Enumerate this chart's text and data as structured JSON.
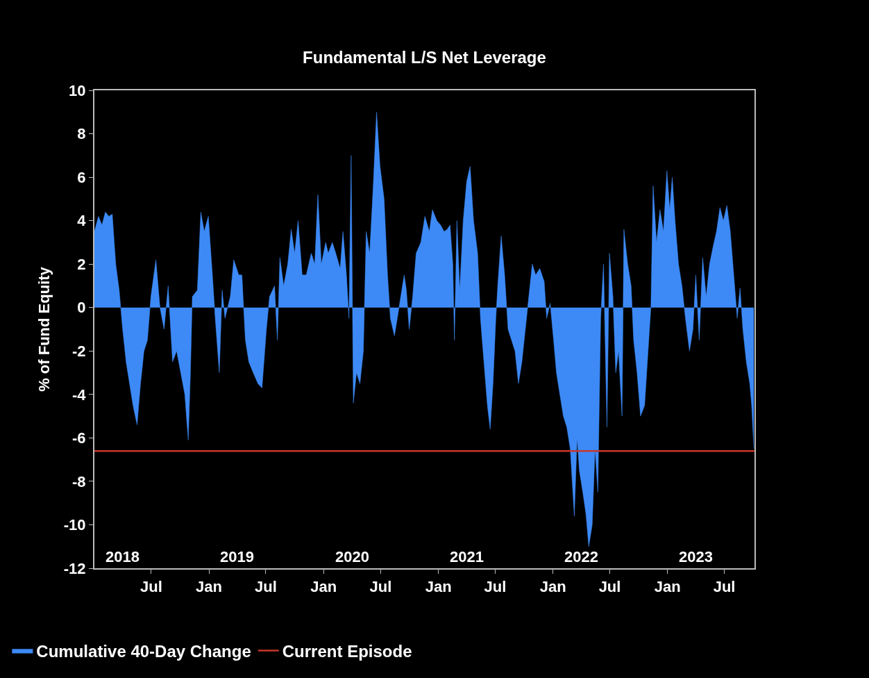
{
  "chart_data": {
    "type": "area",
    "title": "Fundamental L/S Net Leverage",
    "ylabel": "% of Fund Equity",
    "x": [
      "2018-01-01",
      "2018-01-14",
      "2018-01-25",
      "2018-02-05",
      "2018-02-16",
      "2018-02-27",
      "2018-03-10",
      "2018-03-21",
      "2018-04-01",
      "2018-04-12",
      "2018-04-23",
      "2018-05-04",
      "2018-05-17",
      "2018-05-28",
      "2018-06-08",
      "2018-06-19",
      "2018-06-30",
      "2018-07-16",
      "2018-07-29",
      "2018-08-11",
      "2018-08-24",
      "2018-09-07",
      "2018-09-20",
      "2018-10-03",
      "2018-10-16",
      "2018-10-27",
      "2018-11-03",
      "2018-11-09",
      "2018-11-25",
      "2018-12-06",
      "2018-12-17",
      "2018-12-30",
      "2019-01-12",
      "2019-01-21",
      "2019-02-03",
      "2019-02-12",
      "2019-02-21",
      "2019-03-10",
      "2019-03-21",
      "2019-04-06",
      "2019-04-16",
      "2019-04-27",
      "2019-05-08",
      "2019-05-22",
      "2019-06-06",
      "2019-06-19",
      "2019-07-03",
      "2019-07-13",
      "2019-07-29",
      "2019-08-07",
      "2019-08-15",
      "2019-08-27",
      "2019-09-09",
      "2019-09-20",
      "2019-10-01",
      "2019-10-12",
      "2019-10-25",
      "2019-11-07",
      "2019-11-23",
      "2019-12-04",
      "2019-12-14",
      "2019-12-25",
      "2020-01-08",
      "2020-01-16",
      "2020-01-29",
      "2020-02-09",
      "2020-02-23",
      "2020-03-03",
      "2020-03-14",
      "2020-03-22",
      "2020-03-29",
      "2020-04-05",
      "2020-04-15",
      "2020-04-26",
      "2020-05-07",
      "2020-05-16",
      "2020-05-27",
      "2020-06-07",
      "2020-06-18",
      "2020-06-29",
      "2020-07-12",
      "2020-07-23",
      "2020-08-01",
      "2020-08-14",
      "2020-08-23",
      "2020-09-03",
      "2020-09-14",
      "2020-09-21",
      "2020-09-30",
      "2020-10-11",
      "2020-10-22",
      "2020-11-06",
      "2020-11-19",
      "2020-12-03",
      "2020-12-13",
      "2020-12-27",
      "2021-01-08",
      "2021-01-19",
      "2021-01-29",
      "2021-02-07",
      "2021-02-16",
      "2021-02-21",
      "2021-03-01",
      "2021-03-10",
      "2021-03-21",
      "2021-04-01",
      "2021-04-12",
      "2021-04-23",
      "2021-05-06",
      "2021-05-15",
      "2021-05-26",
      "2021-06-06",
      "2021-06-15",
      "2021-06-24",
      "2021-07-03",
      "2021-07-09",
      "2021-07-20",
      "2021-07-31",
      "2021-08-11",
      "2021-08-22",
      "2021-09-02",
      "2021-09-13",
      "2021-09-24",
      "2021-10-05",
      "2021-10-16",
      "2021-10-27",
      "2021-11-07",
      "2021-11-20",
      "2021-12-04",
      "2021-12-12",
      "2021-12-23",
      "2022-01-03",
      "2022-01-12",
      "2022-01-23",
      "2022-02-03",
      "2022-02-14",
      "2022-02-25",
      "2022-03-10",
      "2022-03-19",
      "2022-03-26",
      "2022-04-06",
      "2022-04-16",
      "2022-04-25",
      "2022-05-06",
      "2022-05-15",
      "2022-05-24",
      "2022-06-02",
      "2022-06-11",
      "2022-06-22",
      "2022-06-30",
      "2022-07-11",
      "2022-07-20",
      "2022-07-29",
      "2022-08-09",
      "2022-08-15",
      "2022-08-27",
      "2022-09-07",
      "2022-09-15",
      "2022-09-26",
      "2022-10-07",
      "2022-10-20",
      "2022-10-31",
      "2022-11-09",
      "2022-11-16",
      "2022-11-27",
      "2022-12-08",
      "2022-12-19",
      "2022-12-30",
      "2023-01-08",
      "2023-01-16",
      "2023-01-25",
      "2023-02-05",
      "2023-02-16",
      "2023-02-27",
      "2023-03-12",
      "2023-03-23",
      "2023-04-01",
      "2023-04-12",
      "2023-04-23",
      "2023-05-04",
      "2023-05-15",
      "2023-05-26",
      "2023-06-06",
      "2023-06-17",
      "2023-06-28",
      "2023-07-09",
      "2023-07-20",
      "2023-07-31",
      "2023-08-11",
      "2023-08-20",
      "2023-08-29",
      "2023-09-09",
      "2023-09-20",
      "2023-09-26",
      "2023-10-03"
    ],
    "series": [
      {
        "name": "Cumulative 40-Day Change",
        "color": "#3d8af7",
        "values": [
          3.5,
          4.2,
          3.8,
          4.4,
          4.2,
          4.3,
          2.0,
          0.8,
          -1.0,
          -2.5,
          -3.5,
          -4.5,
          -5.4,
          -3.5,
          -2.0,
          -1.5,
          0.5,
          2.2,
          0.0,
          -1.0,
          1.0,
          -2.5,
          -2.0,
          -3.0,
          -4.0,
          -6.1,
          -3.0,
          0.5,
          0.8,
          4.4,
          3.5,
          4.2,
          1.5,
          -0.5,
          -3.0,
          0.8,
          -0.5,
          0.5,
          2.2,
          1.5,
          1.5,
          -1.5,
          -2.5,
          -3.0,
          -3.5,
          -3.7,
          -1.0,
          0.5,
          1.0,
          -1.5,
          2.3,
          1.0,
          2.0,
          3.6,
          2.5,
          4.0,
          1.5,
          1.5,
          2.5,
          2.0,
          5.2,
          2.0,
          3.0,
          2.5,
          3.0,
          2.5,
          1.8,
          3.5,
          1.5,
          -0.5,
          7.0,
          -4.4,
          -3.0,
          -3.5,
          -2.0,
          3.5,
          2.5,
          5.5,
          9.0,
          6.5,
          5.0,
          1.5,
          -0.5,
          -1.3,
          -0.5,
          0.5,
          1.5,
          0.8,
          -1.0,
          0.5,
          2.5,
          3.0,
          4.2,
          3.5,
          4.5,
          4.0,
          3.8,
          3.5,
          3.6,
          3.8,
          2.0,
          -1.5,
          4.0,
          0.8,
          4.0,
          5.8,
          6.5,
          4.0,
          2.5,
          -0.5,
          -2.5,
          -4.5,
          -5.6,
          -3.5,
          -0.5,
          1.0,
          3.3,
          1.5,
          -1.0,
          -1.5,
          -2.0,
          -3.5,
          -2.5,
          -1.0,
          0.5,
          2.0,
          1.5,
          1.8,
          1.2,
          -0.5,
          0.2,
          -1.5,
          -3.0,
          -4.0,
          -5.0,
          -5.5,
          -6.5,
          -9.6,
          -6.0,
          -7.5,
          -8.5,
          -9.5,
          -11.0,
          -10.0,
          -6.5,
          -8.5,
          -0.5,
          2.0,
          -5.5,
          2.5,
          0.5,
          -3.0,
          -2.0,
          -5.0,
          3.6,
          2.0,
          1.0,
          -1.5,
          -3.0,
          -5.0,
          -4.5,
          -2.0,
          0.0,
          5.6,
          3.0,
          4.5,
          3.5,
          6.3,
          4.5,
          6.0,
          4.0,
          2.0,
          1.0,
          -0.5,
          -2.0,
          -1.0,
          1.5,
          -1.5,
          2.3,
          0.5,
          2.0,
          2.8,
          3.5,
          4.6,
          4.0,
          4.7,
          3.5,
          1.5,
          -0.5,
          0.9,
          -1.0,
          -2.5,
          -3.5,
          -4.5,
          -6.5
        ]
      },
      {
        "name": "Current Episode",
        "type": "line",
        "color": "#c8372d",
        "x": [
          "2018-01-01",
          "2023-10-05"
        ],
        "values": [
          -6.6,
          -6.6
        ]
      }
    ],
    "xlim": [
      "2018-01-01",
      "2023-10-05"
    ],
    "xticks": [
      {
        "value": "2018-07-01",
        "label": "Jul"
      },
      {
        "value": "2019-01-01",
        "label": "Jan"
      },
      {
        "value": "2019-07-01",
        "label": "Jul"
      },
      {
        "value": "2020-01-01",
        "label": "Jan"
      },
      {
        "value": "2020-07-01",
        "label": "Jul"
      },
      {
        "value": "2021-01-01",
        "label": "Jan"
      },
      {
        "value": "2021-07-01",
        "label": "Jul"
      },
      {
        "value": "2022-01-01",
        "label": "Jan"
      },
      {
        "value": "2022-07-01",
        "label": "Jul"
      },
      {
        "value": "2023-01-01",
        "label": "Jan"
      },
      {
        "value": "2023-07-01",
        "label": "Jul"
      }
    ],
    "x2lim": [
      "2018-01-01",
      "2023-10-05"
    ],
    "x2ticks": [
      {
        "value": "2018-04-01",
        "label": "2018"
      },
      {
        "value": "2019-04-01",
        "label": "2019"
      },
      {
        "value": "2020-04-01",
        "label": "2020"
      },
      {
        "value": "2021-04-01",
        "label": "2021"
      },
      {
        "value": "2022-04-01",
        "label": "2022"
      },
      {
        "value": "2023-04-01",
        "label": "2023"
      }
    ],
    "ylim": [
      -12,
      10
    ],
    "yticks": [
      -12,
      -10,
      -8,
      -6,
      -4,
      -2,
      0,
      2,
      4,
      6,
      8,
      10
    ],
    "legend": "bottom"
  }
}
